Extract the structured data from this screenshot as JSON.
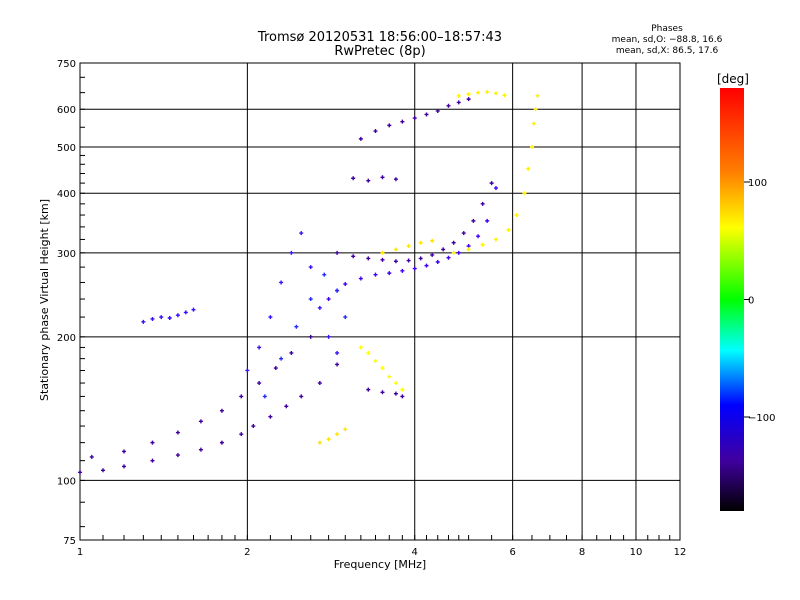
{
  "header": {
    "title_line1": "Tromsø 20120531 18:56:00–18:57:43",
    "title_line2": "RwPretec (8p)",
    "phases_title": "Phases",
    "phases_o": "mean, sd,O: −88.8, 16.6",
    "phases_x": "mean, sd,X:  86.5, 17.6"
  },
  "chart_data": {
    "type": "scatter",
    "title": "Tromsø 20120531 18:56:00–18:57:43",
    "subtitle": "RwPretec (8p)",
    "xlabel": "Frequency [MHz]",
    "ylabel": "Stationary phase Virtual Height [km]",
    "xscale": "log",
    "yscale": "log",
    "xlim": [
      1,
      12
    ],
    "ylim": [
      75,
      750
    ],
    "x_ticks": [
      "1",
      "2",
      "4",
      "6",
      "8",
      "10",
      "12"
    ],
    "y_ticks": [
      "75",
      "100",
      "200",
      "300",
      "400",
      "500",
      "600",
      "750"
    ],
    "grid": true,
    "colorbar": {
      "label": "[deg]",
      "ticks": [
        "100",
        "0",
        "−100"
      ],
      "range": [
        -180,
        180
      ]
    },
    "series": [
      {
        "phase": -100,
        "x": [
          1.0,
          1.1,
          1.2,
          1.35,
          1.5,
          1.65,
          1.8,
          1.95,
          2.05,
          2.2,
          2.35,
          2.5,
          2.7,
          2.9
        ],
        "y": [
          104,
          105,
          107,
          110,
          113,
          116,
          120,
          125,
          130,
          136,
          143,
          150,
          160,
          175
        ]
      },
      {
        "phase": -95,
        "x": [
          1.05,
          1.2,
          1.35,
          1.5,
          1.65,
          1.8,
          1.95,
          2.1,
          2.25,
          2.4,
          2.6
        ],
        "y": [
          112,
          115,
          120,
          126,
          133,
          140,
          150,
          160,
          172,
          185,
          200
        ]
      },
      {
        "phase": -90,
        "x": [
          2.8,
          2.9,
          3.0,
          3.2,
          3.4,
          3.6,
          3.8,
          4.0,
          4.2,
          4.4,
          4.6,
          4.8,
          5.0,
          5.2,
          5.4,
          5.6
        ],
        "y": [
          240,
          250,
          258,
          265,
          270,
          272,
          275,
          278,
          282,
          287,
          293,
          300,
          310,
          325,
          350,
          410
        ]
      },
      {
        "phase": -110,
        "x": [
          2.9,
          3.1,
          3.3,
          3.5,
          3.7,
          3.9,
          4.1,
          4.3,
          4.5,
          4.7,
          4.9,
          5.1,
          5.3,
          5.5
        ],
        "y": [
          300,
          295,
          292,
          290,
          288,
          289,
          292,
          297,
          305,
          315,
          330,
          350,
          380,
          420
        ]
      },
      {
        "phase": -110,
        "x": [
          3.2,
          3.4,
          3.6,
          3.8,
          4.0,
          4.2,
          4.4,
          4.6,
          4.8,
          5.0
        ],
        "y": [
          520,
          540,
          555,
          565,
          575,
          585,
          595,
          610,
          620,
          630
        ]
      },
      {
        "phase": -105,
        "x": [
          3.1,
          3.3,
          3.5,
          3.7
        ],
        "y": [
          430,
          425,
          432,
          428
        ]
      },
      {
        "phase": -85,
        "x": [
          1.3,
          1.35,
          1.4,
          1.45,
          1.5,
          1.55,
          1.6
        ],
        "y": [
          215,
          218,
          220,
          219,
          222,
          225,
          228
        ]
      },
      {
        "phase": -80,
        "x": [
          2.0,
          2.1,
          2.2,
          2.3,
          2.4,
          2.5,
          2.6,
          2.7,
          2.8,
          2.9
        ],
        "y": [
          170,
          190,
          220,
          260,
          300,
          330,
          280,
          230,
          200,
          185
        ]
      },
      {
        "phase": -70,
        "x": [
          2.15,
          2.3,
          2.45,
          2.6,
          2.75,
          2.9,
          3.0
        ],
        "y": [
          150,
          180,
          210,
          240,
          270,
          250,
          220
        ]
      },
      {
        "phase": 95,
        "x": [
          4.7,
          5.0,
          5.3,
          5.6,
          5.9,
          6.1,
          6.3,
          6.4,
          6.5,
          6.55,
          6.6,
          6.65
        ],
        "y": [
          300,
          305,
          312,
          320,
          335,
          360,
          400,
          450,
          500,
          560,
          600,
          640
        ]
      },
      {
        "phase": 100,
        "x": [
          3.5,
          3.7,
          3.9,
          4.1,
          4.3
        ],
        "y": [
          300,
          305,
          310,
          315,
          318
        ]
      },
      {
        "phase": 95,
        "x": [
          4.8,
          5.0,
          5.2,
          5.4,
          5.6,
          5.8
        ],
        "y": [
          640,
          645,
          650,
          652,
          648,
          642
        ]
      },
      {
        "phase": 90,
        "x": [
          3.2,
          3.3,
          3.4,
          3.5,
          3.6,
          3.7,
          3.8
        ],
        "y": [
          190,
          185,
          178,
          172,
          165,
          160,
          155
        ]
      },
      {
        "phase": 100,
        "x": [
          2.7,
          2.8,
          2.9,
          3.0
        ],
        "y": [
          120,
          122,
          125,
          128
        ]
      },
      {
        "phase": -100,
        "x": [
          3.3,
          3.5,
          3.7,
          3.8
        ],
        "y": [
          155,
          153,
          152,
          150
        ]
      }
    ]
  },
  "colors": {
    "gradient": [
      "#ff0000",
      "#ff8000",
      "#ffff00",
      "#00ff00",
      "#00ffff",
      "#0000ff",
      "#4000a0",
      "#000000"
    ]
  }
}
